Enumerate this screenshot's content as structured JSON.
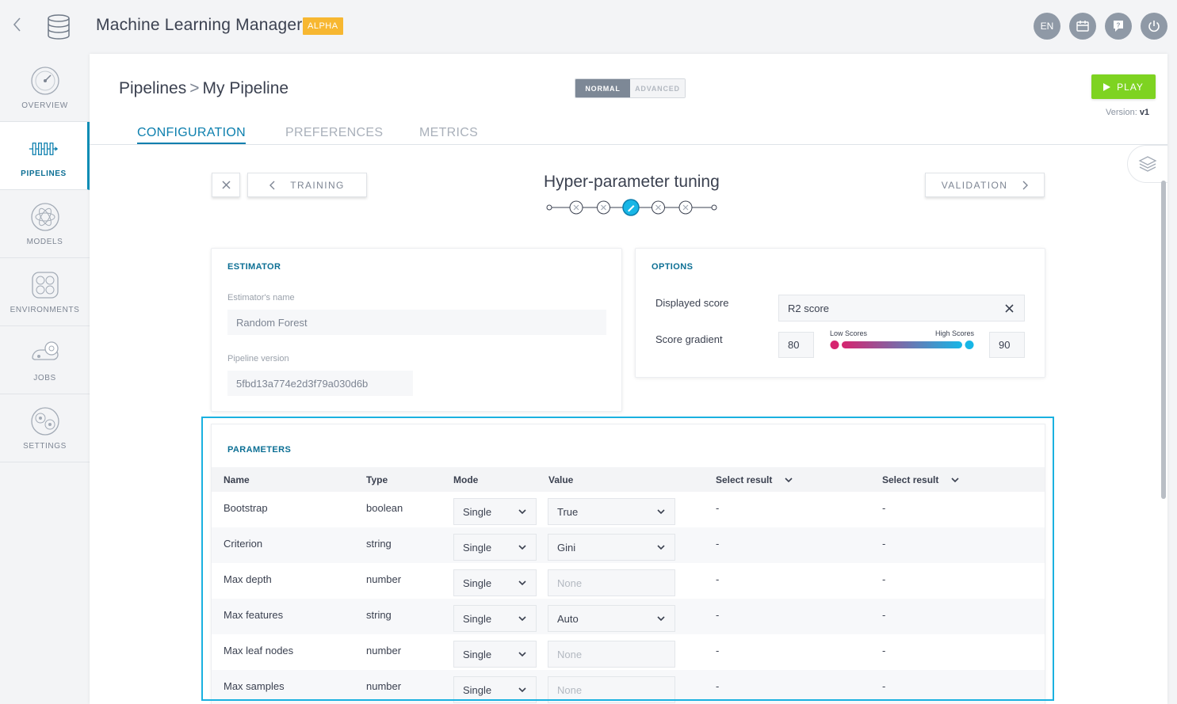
{
  "app": {
    "title": "Machine Learning Manager",
    "badge": "ALPHA",
    "language": "EN"
  },
  "sidebar": {
    "items": [
      {
        "label": "OVERVIEW",
        "icon": "gauge-icon"
      },
      {
        "label": "PIPELINES",
        "icon": "pipeline-icon"
      },
      {
        "label": "MODELS",
        "icon": "atom-icon"
      },
      {
        "label": "ENVIRONMENTS",
        "icon": "environment-icon"
      },
      {
        "label": "JOBS",
        "icon": "jobs-icon"
      },
      {
        "label": "SETTINGS",
        "icon": "gear-icon"
      }
    ]
  },
  "breadcrumb": {
    "root": "Pipelines",
    "separator": ">",
    "current": "My Pipeline"
  },
  "mode": {
    "normal": "NORMAL",
    "advanced": "ADVANCED",
    "selected": "NORMAL"
  },
  "play": {
    "label": "PLAY",
    "version_label": "Version:",
    "version_value": "v1"
  },
  "tabs": [
    {
      "label": "CONFIGURATION",
      "active": true
    },
    {
      "label": "PREFERENCES",
      "active": false
    },
    {
      "label": "METRICS",
      "active": false
    }
  ],
  "step": {
    "title": "Hyper-parameter tuning",
    "prev_label": "TRAINING",
    "next_label": "VALIDATION",
    "total_steps": 6,
    "current_step": 3
  },
  "estimator": {
    "title": "ESTIMATOR",
    "name_label": "Estimator's name",
    "name_value": "Random Forest",
    "version_label": "Pipeline version",
    "version_value": "5fbd13a774e2d3f79a030d6b"
  },
  "options": {
    "title": "OPTIONS",
    "displayed_score_label": "Displayed score",
    "displayed_score_value": "R2 score",
    "score_gradient_label": "Score gradient",
    "gradient_low": "80",
    "gradient_high": "90",
    "low_scores_label": "Low Scores",
    "high_scores_label": "High Scores",
    "gradient_colors": {
      "low": "#d6246f",
      "high": "#17b6e6"
    }
  },
  "parameters": {
    "title": "PARAMETERS",
    "columns": {
      "name": "Name",
      "type": "Type",
      "mode": "Mode",
      "value": "Value",
      "select_result_1": "Select result",
      "select_result_2": "Select result"
    },
    "rows": [
      {
        "name": "Bootstrap",
        "type": "boolean",
        "mode": "Single",
        "value": "True",
        "value_kind": "select",
        "result1": "-",
        "result2": "-"
      },
      {
        "name": "Criterion",
        "type": "string",
        "mode": "Single",
        "value": "Gini",
        "value_kind": "select",
        "result1": "-",
        "result2": "-"
      },
      {
        "name": "Max depth",
        "type": "number",
        "mode": "Single",
        "value": "None",
        "value_kind": "input",
        "result1": "-",
        "result2": "-"
      },
      {
        "name": "Max features",
        "type": "string",
        "mode": "Single",
        "value": "Auto",
        "value_kind": "select",
        "result1": "-",
        "result2": "-"
      },
      {
        "name": "Max leaf nodes",
        "type": "number",
        "mode": "Single",
        "value": "None",
        "value_kind": "input",
        "result1": "-",
        "result2": "-"
      },
      {
        "name": "Max samples",
        "type": "number",
        "mode": "Single",
        "value": "None",
        "value_kind": "input",
        "result1": "-",
        "result2": "-"
      }
    ]
  },
  "colors": {
    "accent": "#0c7fae",
    "play": "#7ed321",
    "badge": "#f7b731",
    "highlight": "#1ab1e0"
  }
}
